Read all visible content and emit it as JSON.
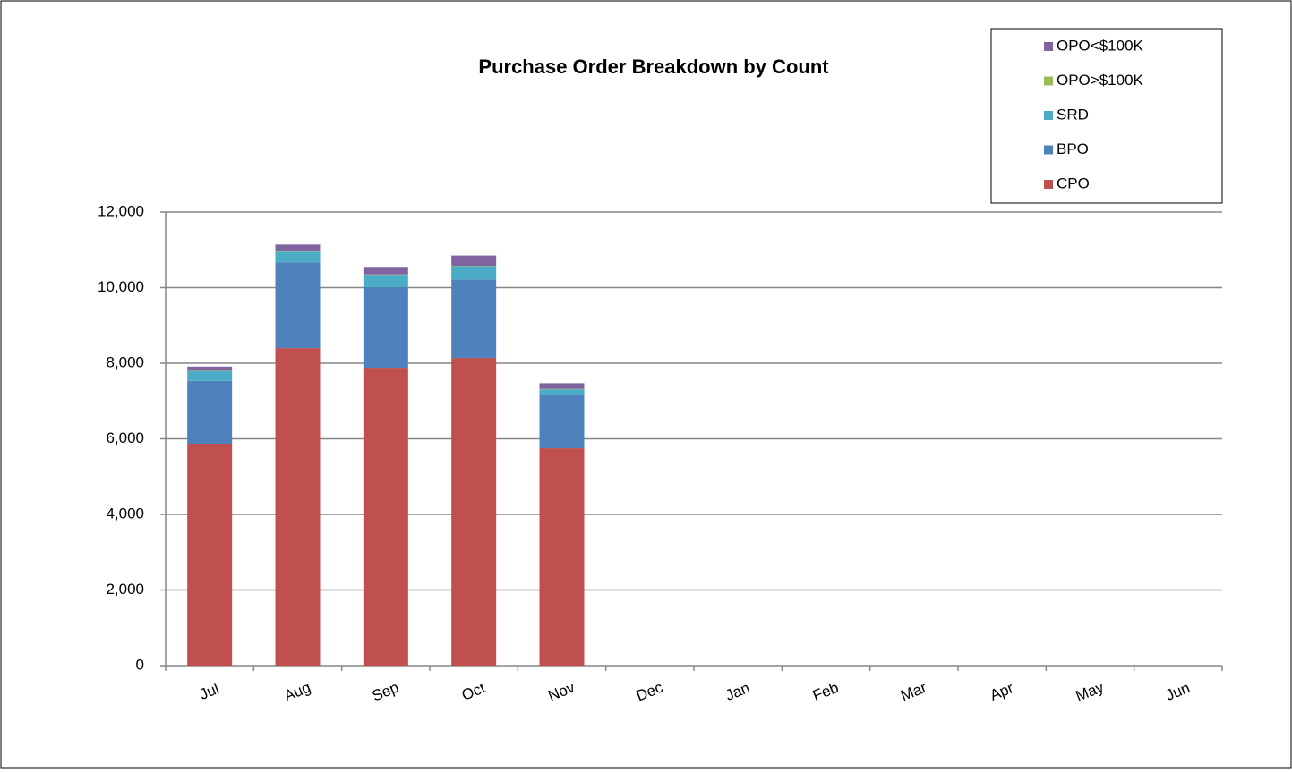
{
  "chart_data": {
    "type": "stacked_bar",
    "title": "Purchase Order Breakdown by Count",
    "categories": [
      "Jul",
      "Aug",
      "Sep",
      "Oct",
      "Nov",
      "Dec",
      "Jan",
      "Feb",
      "Mar",
      "Apr",
      "May",
      "Jun"
    ],
    "series": [
      {
        "name": "CPO",
        "color": "#c0504d",
        "values": [
          5870,
          8400,
          7880,
          8140,
          5750,
          null,
          null,
          null,
          null,
          null,
          null,
          null
        ]
      },
      {
        "name": "BPO",
        "color": "#4f81bd",
        "values": [
          1660,
          2270,
          2130,
          2080,
          1420,
          null,
          null,
          null,
          null,
          null,
          null,
          null
        ]
      },
      {
        "name": "SRD",
        "color": "#4bacc6",
        "values": [
          260,
          280,
          330,
          350,
          140,
          null,
          null,
          null,
          null,
          null,
          null,
          null
        ]
      },
      {
        "name": "OPO>$100K",
        "color": "#9bbb59",
        "values": [
          10,
          10,
          10,
          10,
          10,
          null,
          null,
          null,
          null,
          null,
          null,
          null
        ]
      },
      {
        "name": "OPO<$100K",
        "color": "#8064a2",
        "values": [
          110,
          180,
          200,
          270,
          150,
          null,
          null,
          null,
          null,
          null,
          null,
          null
        ]
      }
    ],
    "ylim": [
      0,
      12000
    ],
    "yticks": [
      0,
      {
        "value": 2000,
        "label": "2,000"
      },
      {
        "value": 4000,
        "label": "4,000"
      },
      {
        "value": 6000,
        "label": "6,000"
      },
      {
        "value": 8000,
        "label": "8,000"
      },
      {
        "value": 10000,
        "label": "10,000"
      },
      {
        "value": 12000,
        "label": "12,000"
      }
    ],
    "grid": true,
    "legend": "top-right"
  }
}
